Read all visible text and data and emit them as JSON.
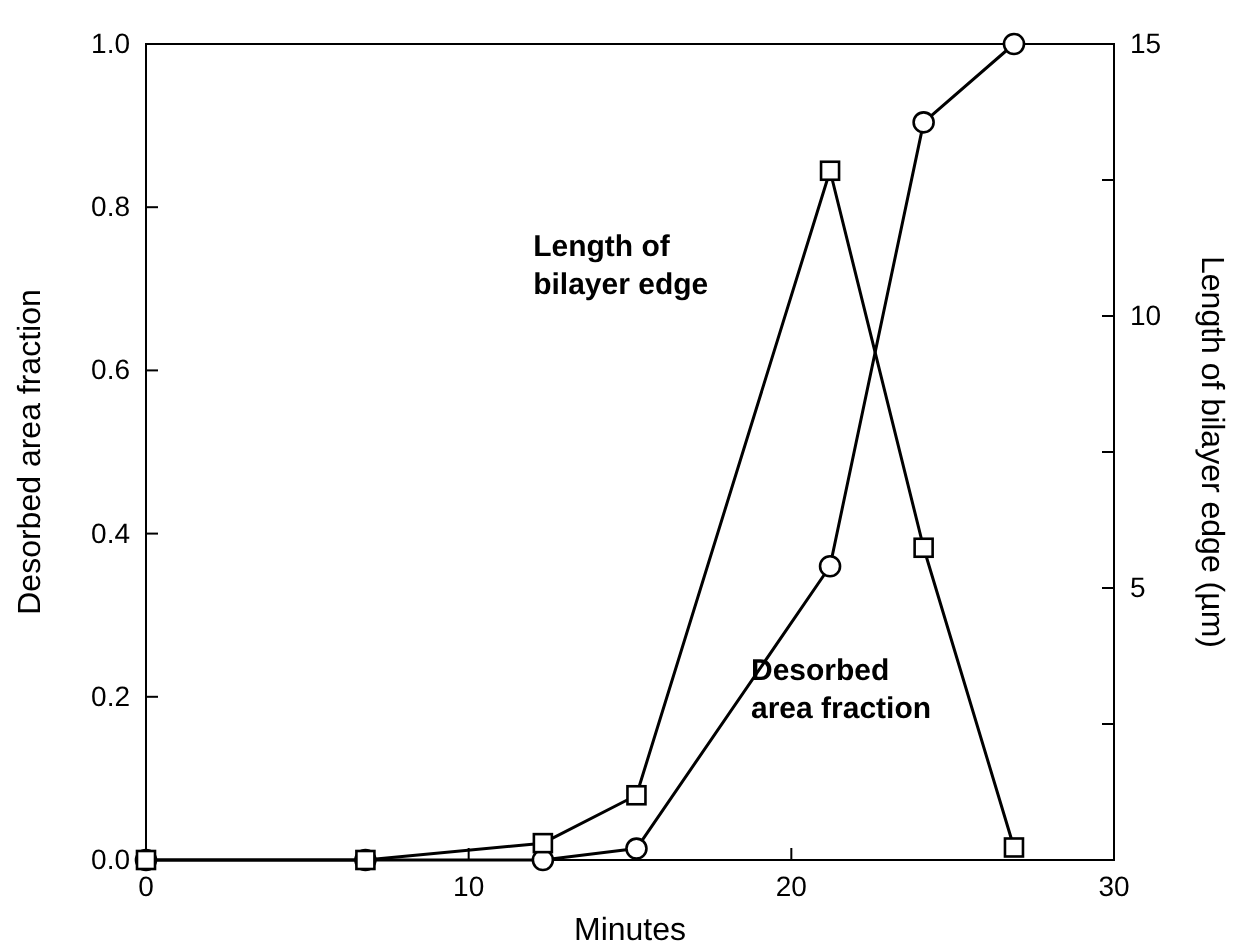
{
  "chart_data": {
    "type": "line",
    "xlabel": "Minutes",
    "ylabel": "Desorbed area fraction",
    "y2label": "Length of bilayer edge (µm)",
    "xlim": [
      0,
      30
    ],
    "xticks": [
      0,
      10,
      20,
      30
    ],
    "ylim": [
      0,
      1
    ],
    "yticks": [
      {
        "value": 0,
        "label": "0.0"
      },
      0.2,
      0.4,
      0.6,
      0.8,
      {
        "value": 1,
        "label": "1.0"
      }
    ],
    "y2lim": [
      0,
      15
    ],
    "y2ticks": [
      {
        "value": 2.5,
        "label": null
      },
      5,
      {
        "value": 7.5,
        "label": null
      },
      10,
      {
        "value": 12.5,
        "label": null
      },
      15
    ],
    "grid": false,
    "line_style": "solid",
    "x": [
      0,
      6.8,
      12.3,
      15.2,
      21.2,
      24.1,
      26.9
    ],
    "series": [
      {
        "name": "Desorbed\narea fraction",
        "color": "#000000",
        "marker": "circle",
        "values": [
          0,
          0,
          0,
          0.014,
          0.36,
          0.904,
          1.0
        ]
      },
      {
        "name": "Length of\nbilayer edge",
        "color": "#000000",
        "marker": "square",
        "axis": "y2",
        "values": [
          0,
          0,
          0.31,
          1.19,
          12.67,
          5.74,
          0.23
        ]
      }
    ]
  }
}
